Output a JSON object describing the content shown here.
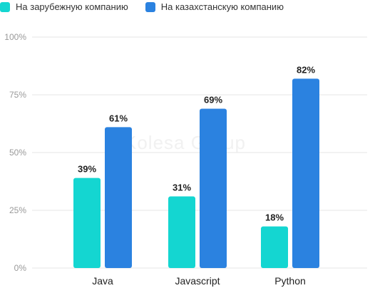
{
  "legend": {
    "series_0": "На зарубежную компанию",
    "series_1": "На казахстанскую компанию"
  },
  "watermark": "Kolesa Group",
  "colors": {
    "series_0": "#14d6d1",
    "series_1": "#2b82e0",
    "grid": "#e6e6e6",
    "tick_text": "#999999",
    "category_text": "#222222",
    "value_label": "#222222"
  },
  "chart_data": {
    "type": "bar",
    "categories": [
      "Java",
      "Javascript",
      "Python"
    ],
    "series": [
      {
        "name": "На зарубежную компанию",
        "values": [
          39,
          31,
          18
        ]
      },
      {
        "name": "На казахстанскую компанию",
        "values": [
          61,
          69,
          82
        ]
      }
    ],
    "value_labels": [
      [
        "39%",
        "31%",
        "18%"
      ],
      [
        "61%",
        "69%",
        "82%"
      ]
    ],
    "yticks": [
      0,
      25,
      50,
      75,
      100
    ],
    "ytick_labels": [
      "0%",
      "25%",
      "50%",
      "75%",
      "100%"
    ],
    "ylim": [
      0,
      100
    ],
    "grid": true,
    "legend_position": "top-left"
  }
}
